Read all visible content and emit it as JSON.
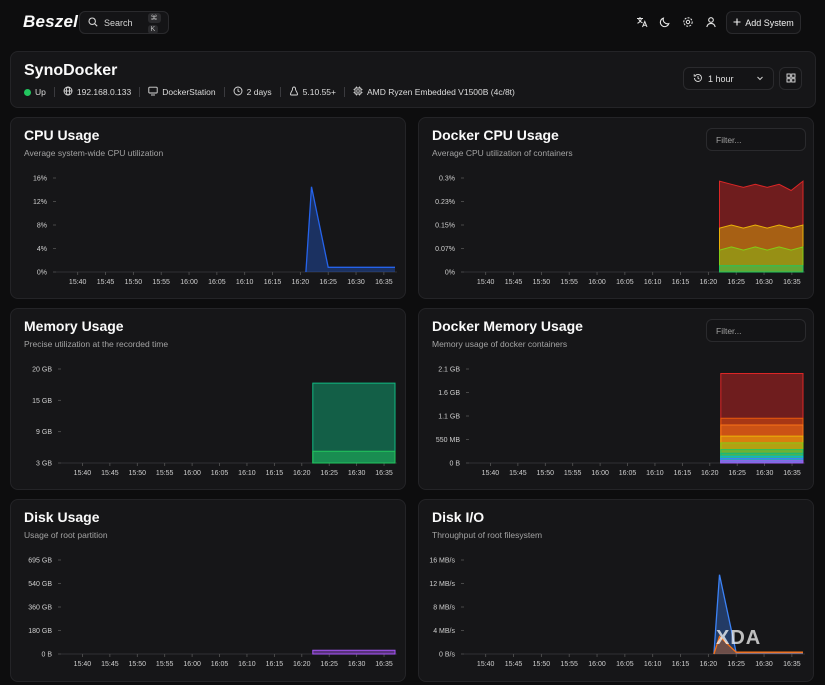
{
  "app": {
    "logo": "Beszel"
  },
  "search": {
    "label": "Search",
    "kbd1": "⌘",
    "kbd2": "K"
  },
  "header": {
    "add_label": "Add System"
  },
  "system": {
    "name": "SynoDocker",
    "status": "Up",
    "status_color": "#22c55e",
    "ip": "192.168.0.133",
    "host": "DockerStation",
    "uptime": "2 days",
    "kernel": "5.10.55+",
    "cpu": "AMD Ryzen Embedded V1500B (4c/8t)"
  },
  "time_range": {
    "label": "1 hour"
  },
  "x_ticks": [
    "15:40",
    "15:45",
    "15:50",
    "15:55",
    "16:00",
    "16:05",
    "16:10",
    "16:15",
    "16:20",
    "16:25",
    "16:30",
    "16:35"
  ],
  "charts": {
    "cpu": {
      "title": "CPU Usage",
      "subtitle": "Average system-wide CPU utilization",
      "y_ticks": [
        "16%",
        "12%",
        "8%",
        "4%",
        "0%"
      ]
    },
    "docker_cpu": {
      "title": "Docker CPU Usage",
      "subtitle": "Average CPU utilization of containers",
      "filter_placeholder": "Filter...",
      "y_ticks": [
        "0.3%",
        "0.23%",
        "0.15%",
        "0.07%",
        "0%"
      ]
    },
    "memory": {
      "title": "Memory Usage",
      "subtitle": "Precise utilization at the recorded time",
      "y_ticks": [
        "20 GB",
        "15 GB",
        "9 GB",
        "3 GB"
      ]
    },
    "docker_memory": {
      "title": "Docker Memory Usage",
      "subtitle": "Memory usage of docker containers",
      "filter_placeholder": "Filter...",
      "y_ticks": [
        "2.1 GB",
        "1.6 GB",
        "1.1 GB",
        "550 MB",
        "0 B"
      ]
    },
    "disk": {
      "title": "Disk Usage",
      "subtitle": "Usage of root partition",
      "y_ticks": [
        "695 GB",
        "540 GB",
        "360 GB",
        "180 GB",
        "0 B"
      ]
    },
    "disk_io": {
      "title": "Disk I/O",
      "subtitle": "Throughput of root filesystem",
      "y_ticks": [
        "16 MB/s",
        "12 MB/s",
        "8 MB/s",
        "4 MB/s",
        "0 B/s"
      ]
    }
  },
  "chart_data": [
    {
      "type": "line",
      "name": "cpu",
      "ylim": [
        0,
        16
      ],
      "x": [
        "16:21",
        "16:22",
        "16:25",
        "16:30",
        "16:35",
        "16:37"
      ],
      "values": [
        0,
        14.5,
        0.8,
        0.8,
        0.8,
        0.8
      ],
      "color": "#2563eb"
    },
    {
      "type": "area",
      "name": "docker_cpu",
      "ylim": [
        0,
        0.3
      ],
      "x_start": "16:22",
      "x_end": "16:37",
      "series": [
        {
          "values": [
            0.02,
            0.02,
            0.02,
            0.02,
            0.02,
            0.02,
            0.02,
            0.02
          ],
          "color": "#22c55e"
        },
        {
          "values": [
            0.07,
            0.08,
            0.07,
            0.08,
            0.07,
            0.08,
            0.07,
            0.08
          ],
          "color": "#84cc16"
        },
        {
          "values": [
            0.14,
            0.15,
            0.14,
            0.15,
            0.14,
            0.15,
            0.14,
            0.15
          ],
          "color": "#eab308"
        },
        {
          "values": [
            0.29,
            0.28,
            0.27,
            0.28,
            0.27,
            0.28,
            0.26,
            0.29
          ],
          "color": "#dc2626"
        }
      ]
    },
    {
      "type": "area",
      "name": "memory",
      "ylim": [
        0,
        20
      ],
      "x_start": "16:22",
      "x_end": "16:37",
      "series": [
        {
          "values": [
            2.5,
            2.5
          ],
          "color": "#22c55e"
        },
        {
          "values": [
            17,
            17
          ],
          "color": "#10b981"
        }
      ]
    },
    {
      "type": "area",
      "name": "docker_memory",
      "ylim": [
        0,
        2.1
      ],
      "x_start": "16:22",
      "x_end": "16:37",
      "series": [
        {
          "values": [
            0.05,
            0.05
          ],
          "color": "#a855f7"
        },
        {
          "values": [
            0.1,
            0.1
          ],
          "color": "#3b82f6"
        },
        {
          "values": [
            0.15,
            0.15
          ],
          "color": "#06b6d4"
        },
        {
          "values": [
            0.22,
            0.22
          ],
          "color": "#10b981"
        },
        {
          "values": [
            0.3,
            0.3
          ],
          "color": "#22c55e"
        },
        {
          "values": [
            0.45,
            0.45
          ],
          "color": "#84cc16"
        },
        {
          "values": [
            0.6,
            0.6
          ],
          "color": "#eab308"
        },
        {
          "values": [
            0.85,
            0.85
          ],
          "color": "#f97316"
        },
        {
          "values": [
            1.0,
            1.0
          ],
          "color": "#ea580c"
        },
        {
          "values": [
            2.0,
            2.0
          ],
          "color": "#dc2626"
        }
      ]
    },
    {
      "type": "area",
      "name": "disk",
      "ylim": [
        0,
        695
      ],
      "x_start": "16:22",
      "x_end": "16:37",
      "series": [
        {
          "values": [
            28,
            28
          ],
          "color": "#a855f7"
        }
      ]
    },
    {
      "type": "line",
      "name": "disk_io",
      "ylim": [
        0,
        16
      ],
      "x": [
        "16:21",
        "16:22",
        "16:25",
        "16:30",
        "16:37"
      ],
      "series": [
        {
          "values": [
            0,
            13.5,
            0.2,
            0.2,
            0.2
          ],
          "color": "#3b82f6"
        },
        {
          "values": [
            0,
            3,
            0.3,
            0.3,
            0.3
          ],
          "color": "#f97316"
        }
      ]
    }
  ],
  "watermark": "XDA"
}
